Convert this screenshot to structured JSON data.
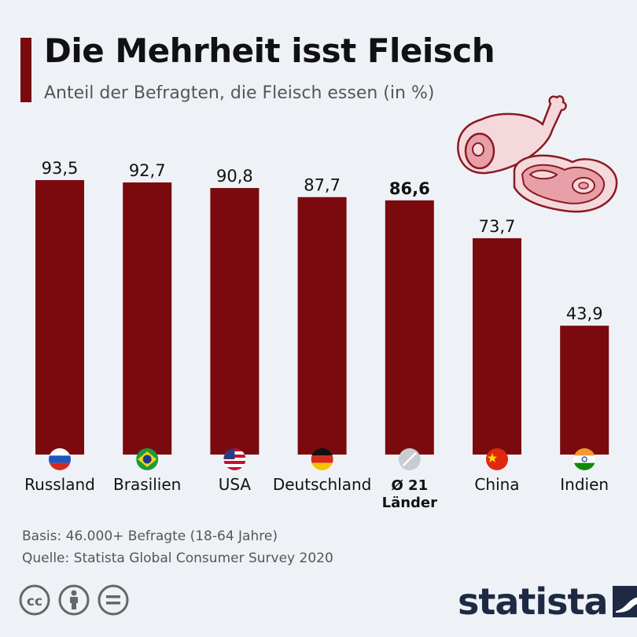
{
  "header": {
    "title": "Die Mehrheit isst Fleisch",
    "subtitle": "Anteil der Befragten, die Fleisch essen (in %)"
  },
  "chart_data": {
    "type": "bar",
    "categories": [
      "Russland",
      "Brasilien",
      "USA",
      "Deutschland",
      "Ø 21 Länder",
      "China",
      "Indien"
    ],
    "category_lines": [
      [
        "Russland"
      ],
      [
        "Brasilien"
      ],
      [
        "USA"
      ],
      [
        "Deutschland"
      ],
      [
        "Ø 21",
        "Länder"
      ],
      [
        "China"
      ],
      [
        "Indien"
      ]
    ],
    "values": [
      93.5,
      92.7,
      90.8,
      87.7,
      86.6,
      73.7,
      43.9
    ],
    "value_labels": [
      "93,5",
      "92,7",
      "90,8",
      "87,7",
      "86,6",
      "73,7",
      "43,9"
    ],
    "highlighted": [
      false,
      false,
      false,
      false,
      true,
      false,
      false
    ],
    "flags": [
      "flag-russia-icon",
      "flag-brazil-icon",
      "flag-usa-icon",
      "flag-germany-icon",
      "average-icon",
      "flag-china-icon",
      "flag-india-icon"
    ],
    "ylim": [
      0,
      93.5
    ],
    "grid": false,
    "bar_color": "#7a0a0e"
  },
  "footer": {
    "basis": "Basis: 46.000+ Befragte (18-64 Jahre)",
    "source": "Quelle: Statista Global Consumer Survey 2020"
  },
  "brand": {
    "name": "statista",
    "color": "#1e2a44"
  },
  "icons": {
    "illustration": "meat-icon",
    "license": [
      "cc-icon",
      "attribution-icon",
      "no-derivatives-icon"
    ]
  }
}
